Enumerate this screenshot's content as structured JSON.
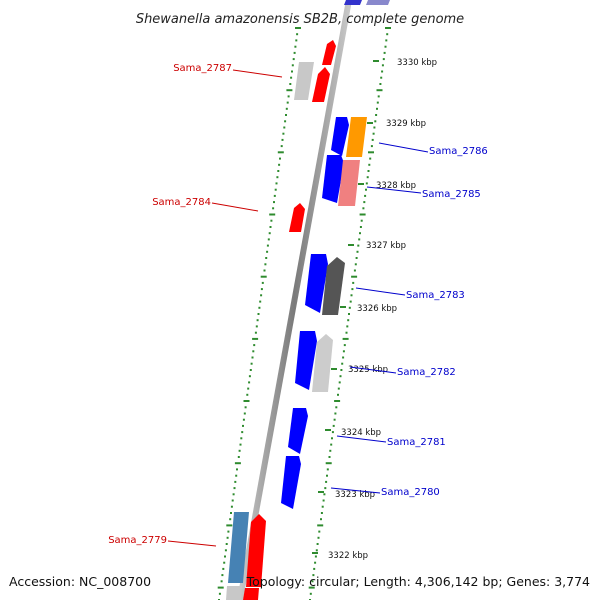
{
  "title": "Shewanella amazonensis SB2B, complete genome",
  "accession_label": "Accession: NC_008700",
  "summary_label": "Topology: circular; Length: 4,306,142 bp; Genes: 3,774",
  "colors": {
    "backbone": "#8c8c8c",
    "tick": "#2e8b2e",
    "forward_gene": "#0000ff",
    "reverse_gene": "#ff0000",
    "leader_red": "#cc0000",
    "leader_blue": "#0000cc"
  },
  "positions_kbp": [
    "3330 kbp",
    "3329 kbp",
    "3328 kbp",
    "3327 kbp",
    "3326 kbp",
    "3325 kbp",
    "3324 kbp",
    "3323 kbp",
    "3322 kbp"
  ],
  "gene_labels": [
    {
      "name": "Sama_2787",
      "side": "left"
    },
    {
      "name": "Sama_2786",
      "side": "right"
    },
    {
      "name": "Sama_2785",
      "side": "right"
    },
    {
      "name": "Sama_2784",
      "side": "left"
    },
    {
      "name": "Sama_2783",
      "side": "right"
    },
    {
      "name": "Sama_2782",
      "side": "right"
    },
    {
      "name": "Sama_2781",
      "side": "right"
    },
    {
      "name": "Sama_2780",
      "side": "right"
    },
    {
      "name": "Sama_2779",
      "side": "left"
    }
  ]
}
